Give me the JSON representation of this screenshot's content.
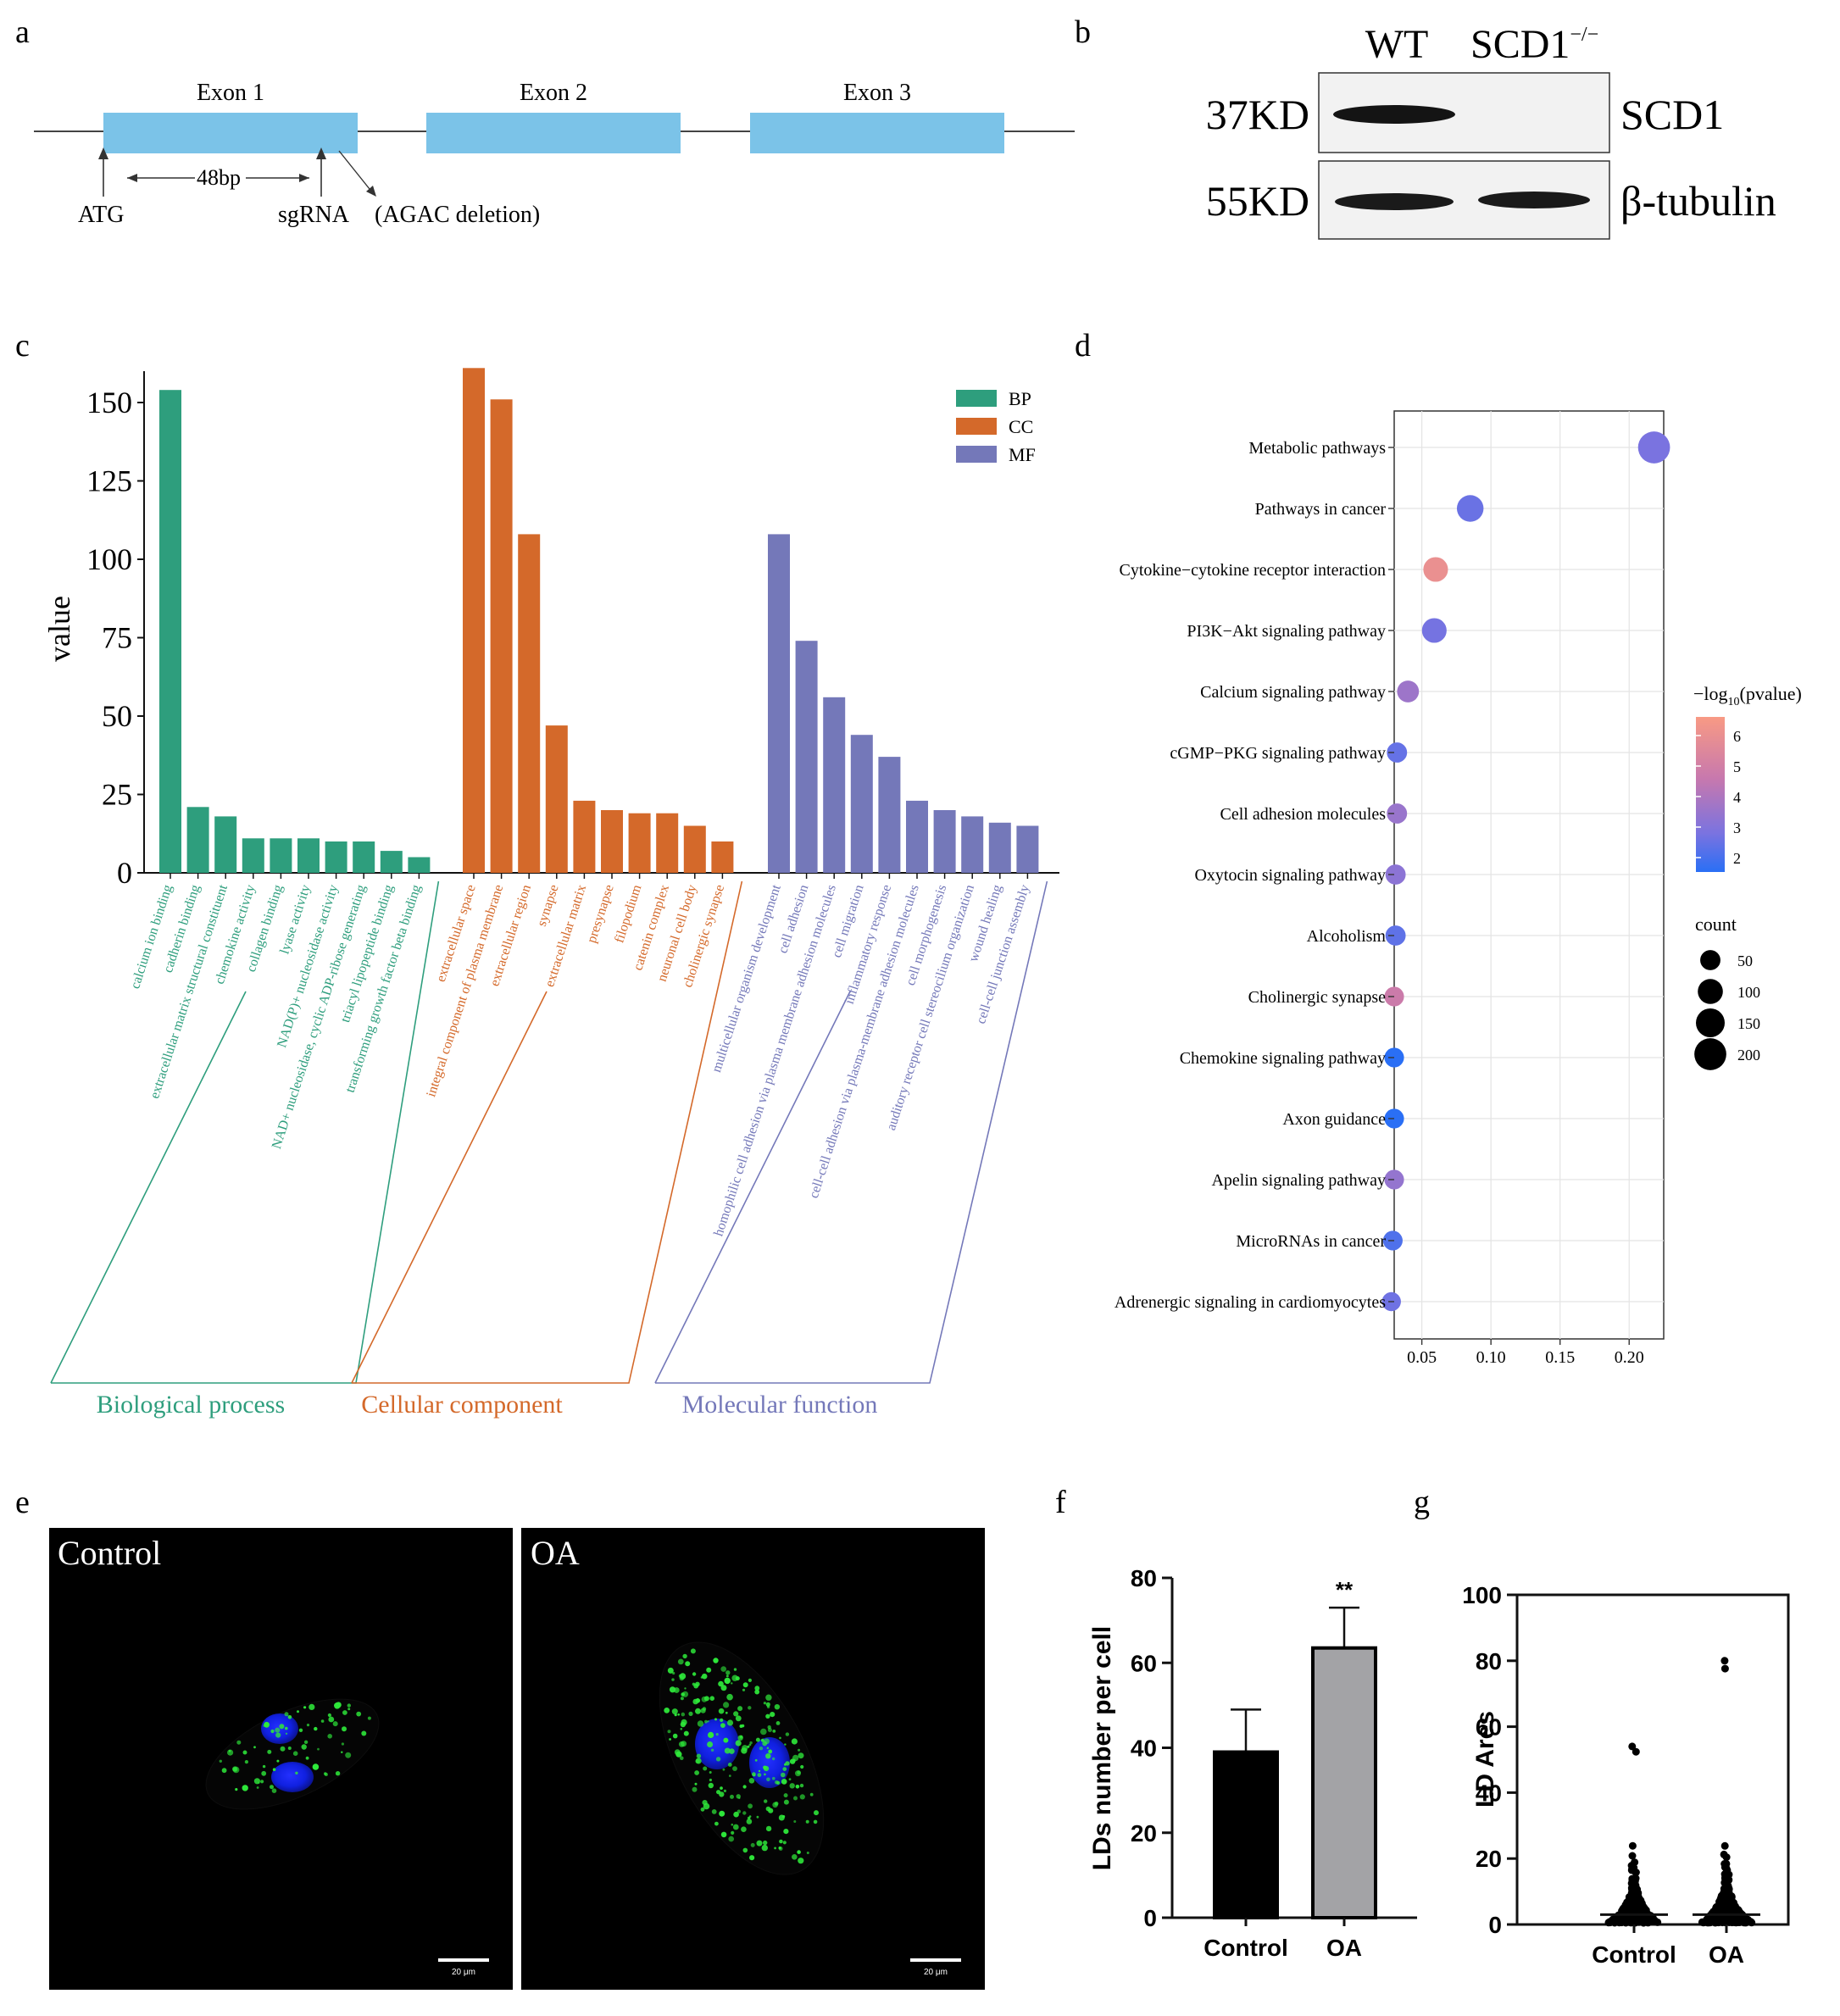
{
  "panel_letters": [
    "a",
    "b",
    "c",
    "d",
    "e",
    "f",
    "g"
  ],
  "panel_a": {
    "exons": [
      "Exon 1",
      "Exon 2",
      "Exon 3"
    ],
    "atg_label": "ATG",
    "distance_label": "48bp",
    "sgrna_label": "sgRNA",
    "deletion_label": "(AGAC deletion)"
  },
  "panel_b": {
    "columns": [
      "WT",
      "SCD1"
    ],
    "superscript": "−/−",
    "rows": [
      {
        "size": "37KD",
        "protein": "SCD1"
      },
      {
        "size": "55KD",
        "protein": "β-tubulin"
      }
    ]
  },
  "colors": {
    "bp": "#2e9e7d",
    "cc": "#d4692a",
    "mf": "#7478b9",
    "exon": "#7bc3e8"
  },
  "chart_data": [
    {
      "panel": "c",
      "type": "bar",
      "ylabel": "value",
      "ylim": [
        0,
        160
      ],
      "yticks": [
        0,
        25,
        50,
        75,
        100,
        125,
        150
      ],
      "legend": [
        "BP",
        "CC",
        "MF"
      ],
      "series": [
        {
          "name": "BP",
          "group_label": "Biological process",
          "categories": [
            "calcium ion binding",
            "cadherin binding",
            "extracellular matrix structural constituent",
            "chemokine activity",
            "collagen binding",
            "lyase activity",
            "NAD(P)+ nucleosidase activity",
            "NAD+ nucleosidase, cyclic ADP-ribose generating",
            "triacyl lipopeptide binding",
            "transforming growth factor beta binding"
          ],
          "values": [
            154,
            21,
            18,
            11,
            11,
            11,
            10,
            10,
            7,
            5
          ]
        },
        {
          "name": "CC",
          "group_label": "Cellular component",
          "categories": [
            "extracellular space",
            "integral component of plasma membrane",
            "extracellular region",
            "synapse",
            "extracellular matrix",
            "presynapse",
            "filopodium",
            "catenin complex",
            "neuronal cell body",
            "cholinergic synapse"
          ],
          "values": [
            161,
            151,
            108,
            47,
            23,
            20,
            19,
            19,
            15,
            10
          ]
        },
        {
          "name": "MF",
          "group_label": "Molecular function",
          "categories": [
            "multicellular organism development",
            "cell adhesion",
            "homophilic cell adhesion via plasma membrane adhesion molecules",
            "cell migration",
            "inflammatory response",
            "cell-cell adhesion via plasma-membrane adhesion molecules",
            "cell morphogenesis",
            "auditory receptor cell stereocilium organization",
            "wound healing",
            "cell-cell junction assembly"
          ],
          "values": [
            108,
            74,
            56,
            44,
            37,
            23,
            20,
            18,
            16,
            15
          ]
        }
      ]
    },
    {
      "panel": "d",
      "type": "scatter",
      "xlim": [
        0.03,
        0.225
      ],
      "xticks": [
        "0.05",
        "0.10",
        "0.15",
        "0.20"
      ],
      "color_title": "−log",
      "color_sub": "10",
      "color_title_end": "(pvalue)",
      "color_ticks": [
        "6",
        "5",
        "4",
        "3",
        "2"
      ],
      "size_title": "count",
      "size_ticks": [
        "50",
        "100",
        "150",
        "200"
      ],
      "points": [
        {
          "term": "Metabolic pathways",
          "x": 0.218,
          "count": 200,
          "logp": 2.8
        },
        {
          "term": "Pathways in cancer",
          "x": 0.085,
          "count": 120,
          "logp": 2.5
        },
        {
          "term": "Cytokine−cytokine receptor interaction",
          "x": 0.06,
          "count": 95,
          "logp": 5.8
        },
        {
          "term": "PI3K−Akt signaling pathway",
          "x": 0.059,
          "count": 95,
          "logp": 2.7
        },
        {
          "term": "Calcium signaling pathway",
          "x": 0.04,
          "count": 65,
          "logp": 3.6
        },
        {
          "term": "cGMP−PKG signaling pathway",
          "x": 0.032,
          "count": 50,
          "logp": 2.4
        },
        {
          "term": "Cell adhesion molecules",
          "x": 0.032,
          "count": 50,
          "logp": 3.5
        },
        {
          "term": "Oxytocin signaling pathway",
          "x": 0.031,
          "count": 50,
          "logp": 3.2
        },
        {
          "term": "Alcoholism",
          "x": 0.031,
          "count": 50,
          "logp": 2.3
        },
        {
          "term": "Cholinergic synapse",
          "x": 0.03,
          "count": 45,
          "logp": 4.7
        },
        {
          "term": "Chemokine signaling pathway",
          "x": 0.03,
          "count": 45,
          "logp": 1.3
        },
        {
          "term": "Axon guidance",
          "x": 0.03,
          "count": 45,
          "logp": 1.3
        },
        {
          "term": "Apelin signaling pathway",
          "x": 0.03,
          "count": 45,
          "logp": 3.4
        },
        {
          "term": "MicroRNAs in cancer",
          "x": 0.029,
          "count": 45,
          "logp": 2.0
        },
        {
          "term": "Adrenergic signaling in cardiomyocytes",
          "x": 0.028,
          "count": 40,
          "logp": 2.6
        }
      ]
    },
    {
      "panel": "f",
      "type": "bar",
      "ylabel": "LDs number per cell",
      "ylim": [
        0,
        80
      ],
      "yticks": [
        0,
        20,
        40,
        60,
        80
      ],
      "categories": [
        "Control",
        "OA"
      ],
      "values": [
        39,
        63.5
      ],
      "errors": [
        10,
        9.5
      ],
      "significance": "**"
    },
    {
      "panel": "g",
      "type": "scatter",
      "ylabel": "LD Ares",
      "ylim": [
        0,
        100
      ],
      "yticks": [
        0,
        20,
        40,
        60,
        80,
        100
      ],
      "categories": [
        "Control",
        "OA"
      ],
      "series": [
        {
          "name": "Control",
          "max": 54,
          "median": 3
        },
        {
          "name": "OA",
          "max": 80,
          "median": 3
        }
      ]
    }
  ],
  "panel_e": {
    "labels": [
      "Control",
      "OA"
    ],
    "scale_bar": "20 μm"
  }
}
